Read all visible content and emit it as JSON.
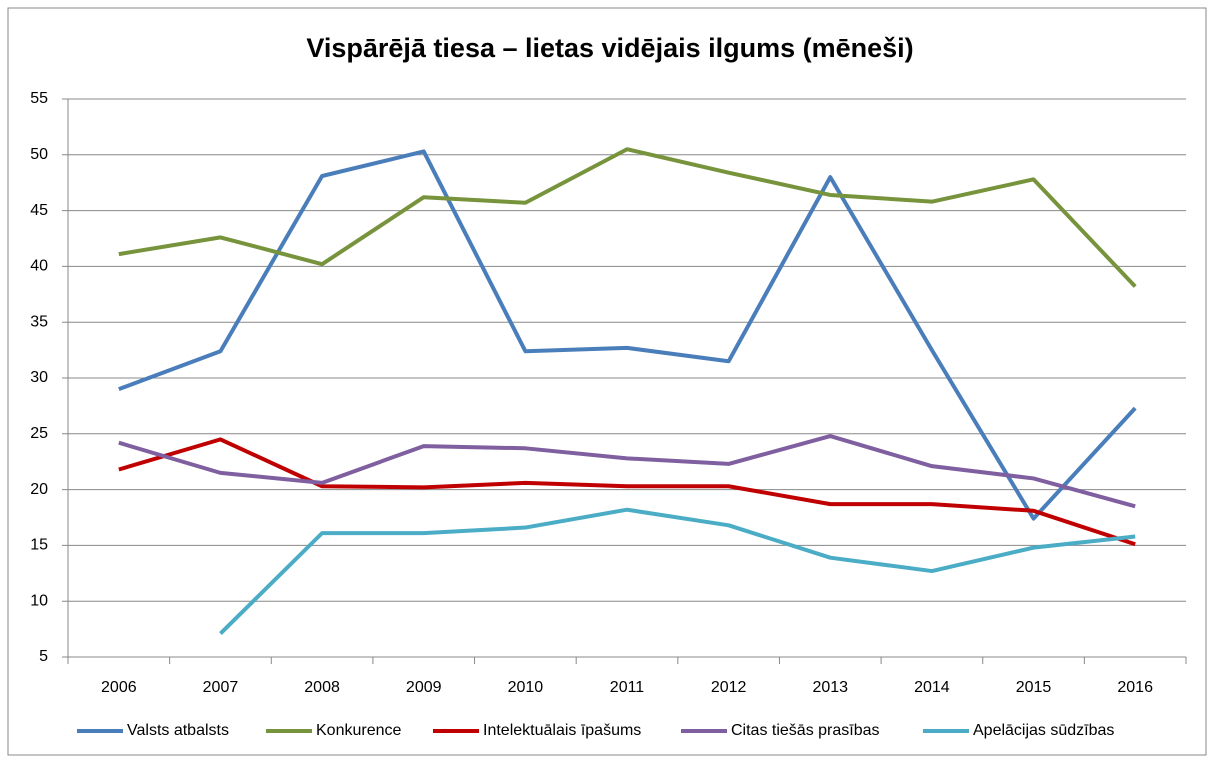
{
  "chart_data": {
    "type": "line",
    "title": "Vispārējā tiesa – lietas vidējais ilgums (mēneši)",
    "categories": [
      "2006",
      "2007",
      "2008",
      "2009",
      "2010",
      "2011",
      "2012",
      "2013",
      "2014",
      "2015",
      "2016"
    ],
    "series": [
      {
        "name": "Valsts atbalsts",
        "color": "#4a7ebb",
        "values": [
          29.0,
          32.4,
          48.1,
          50.3,
          32.4,
          32.7,
          31.5,
          48.0,
          32.5,
          17.4,
          27.3
        ]
      },
      {
        "name": "Konkurence",
        "color": "#77933c",
        "values": [
          41.1,
          42.6,
          40.2,
          46.2,
          45.7,
          50.5,
          48.4,
          46.4,
          45.8,
          47.8,
          38.2
        ]
      },
      {
        "name": "Intelektuālais īpašums",
        "color": "#c00000",
        "values": [
          21.8,
          24.5,
          20.3,
          20.2,
          20.6,
          20.3,
          20.3,
          18.7,
          18.7,
          18.1,
          15.1
        ]
      },
      {
        "name": "Citas tiešās prasības",
        "color": "#7f5f9f",
        "values": [
          24.2,
          21.5,
          20.6,
          23.9,
          23.7,
          22.8,
          22.3,
          24.8,
          22.1,
          21.0,
          18.5
        ]
      },
      {
        "name": "Apelācijas sūdzības",
        "color": "#4bacc6",
        "values": [
          null,
          7.1,
          16.1,
          16.1,
          16.6,
          18.2,
          16.8,
          13.9,
          12.7,
          14.8,
          15.8
        ]
      }
    ],
    "ylim": [
      5,
      55
    ],
    "yticks": [
      5,
      10,
      15,
      20,
      25,
      30,
      35,
      40,
      45,
      50,
      55
    ],
    "grid": true,
    "legend": "bottom"
  }
}
